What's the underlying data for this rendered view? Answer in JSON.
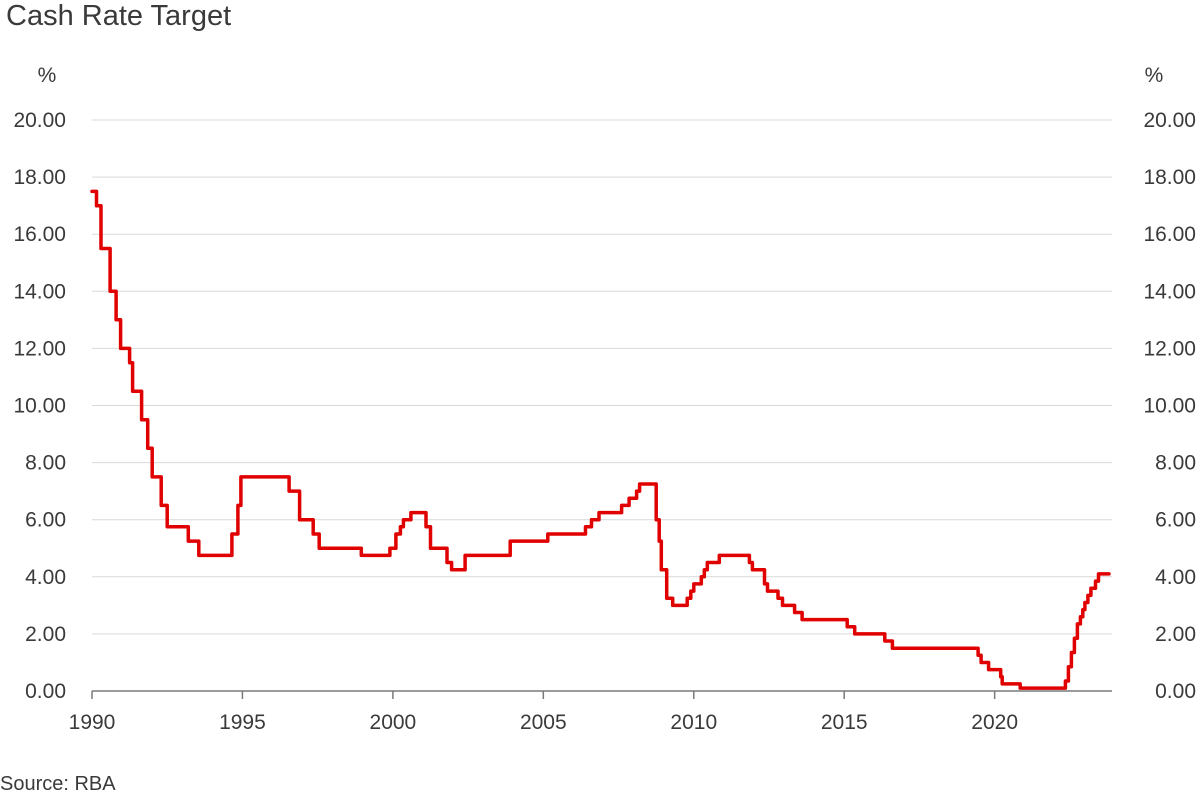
{
  "header": {
    "title": "Cash Rate Target"
  },
  "footer": {
    "source": "Source: RBA"
  },
  "chart_data": {
    "type": "line",
    "title": "Cash Rate Target",
    "ylabel_left": "%",
    "ylabel_right": "%",
    "xlabel": "",
    "xlim": [
      1990,
      2023.9
    ],
    "ylim": [
      0,
      20
    ],
    "yticks": [
      "0.00",
      "2.00",
      "4.00",
      "6.00",
      "8.00",
      "10.00",
      "12.00",
      "14.00",
      "16.00",
      "18.00",
      "20.00"
    ],
    "xticks": [
      "1990",
      "1995",
      "2000",
      "2005",
      "2010",
      "2015",
      "2020"
    ],
    "grid": "horizontal",
    "line_color": "#e00000",
    "series": [
      {
        "step": true,
        "points": [
          [
            1990.0,
            17.5
          ],
          [
            1990.15,
            17.0
          ],
          [
            1990.3,
            15.5
          ],
          [
            1990.6,
            14.0
          ],
          [
            1990.8,
            13.0
          ],
          [
            1990.95,
            12.0
          ],
          [
            1991.25,
            11.5
          ],
          [
            1991.35,
            10.5
          ],
          [
            1991.65,
            9.5
          ],
          [
            1991.85,
            8.5
          ],
          [
            1992.0,
            7.5
          ],
          [
            1992.3,
            6.5
          ],
          [
            1992.5,
            5.75
          ],
          [
            1993.2,
            5.25
          ],
          [
            1993.55,
            4.75
          ],
          [
            1994.65,
            5.5
          ],
          [
            1994.85,
            6.5
          ],
          [
            1994.95,
            7.5
          ],
          [
            1996.55,
            7.0
          ],
          [
            1996.9,
            6.0
          ],
          [
            1997.35,
            5.5
          ],
          [
            1997.55,
            5.0
          ],
          [
            1998.95,
            4.75
          ],
          [
            1999.9,
            5.0
          ],
          [
            2000.1,
            5.5
          ],
          [
            2000.25,
            5.75
          ],
          [
            2000.35,
            6.0
          ],
          [
            2000.6,
            6.25
          ],
          [
            2001.1,
            5.75
          ],
          [
            2001.25,
            5.0
          ],
          [
            2001.8,
            4.5
          ],
          [
            2001.95,
            4.25
          ],
          [
            2002.4,
            4.75
          ],
          [
            2003.9,
            5.25
          ],
          [
            2005.15,
            5.5
          ],
          [
            2006.4,
            5.75
          ],
          [
            2006.6,
            6.0
          ],
          [
            2006.85,
            6.25
          ],
          [
            2007.6,
            6.5
          ],
          [
            2007.85,
            6.75
          ],
          [
            2008.1,
            7.0
          ],
          [
            2008.2,
            7.25
          ],
          [
            2008.75,
            6.0
          ],
          [
            2008.85,
            5.25
          ],
          [
            2008.92,
            4.25
          ],
          [
            2009.1,
            3.25
          ],
          [
            2009.3,
            3.0
          ],
          [
            2009.78,
            3.25
          ],
          [
            2009.9,
            3.5
          ],
          [
            2010.0,
            3.75
          ],
          [
            2010.25,
            4.0
          ],
          [
            2010.35,
            4.25
          ],
          [
            2010.45,
            4.5
          ],
          [
            2010.85,
            4.75
          ],
          [
            2011.85,
            4.5
          ],
          [
            2011.95,
            4.25
          ],
          [
            2012.35,
            3.75
          ],
          [
            2012.45,
            3.5
          ],
          [
            2012.8,
            3.25
          ],
          [
            2012.95,
            3.0
          ],
          [
            2013.35,
            2.75
          ],
          [
            2013.6,
            2.5
          ],
          [
            2015.1,
            2.25
          ],
          [
            2015.35,
            2.0
          ],
          [
            2016.35,
            1.75
          ],
          [
            2016.6,
            1.5
          ],
          [
            2019.45,
            1.25
          ],
          [
            2019.55,
            1.0
          ],
          [
            2019.8,
            0.75
          ],
          [
            2020.2,
            0.5
          ],
          [
            2020.25,
            0.25
          ],
          [
            2020.85,
            0.1
          ],
          [
            2022.35,
            0.35
          ],
          [
            2022.45,
            0.85
          ],
          [
            2022.55,
            1.35
          ],
          [
            2022.65,
            1.85
          ],
          [
            2022.75,
            2.35
          ],
          [
            2022.85,
            2.6
          ],
          [
            2022.93,
            2.85
          ],
          [
            2023.0,
            3.1
          ],
          [
            2023.1,
            3.35
          ],
          [
            2023.2,
            3.6
          ],
          [
            2023.35,
            3.85
          ],
          [
            2023.45,
            4.1
          ],
          [
            2023.8,
            4.1
          ]
        ]
      }
    ]
  }
}
